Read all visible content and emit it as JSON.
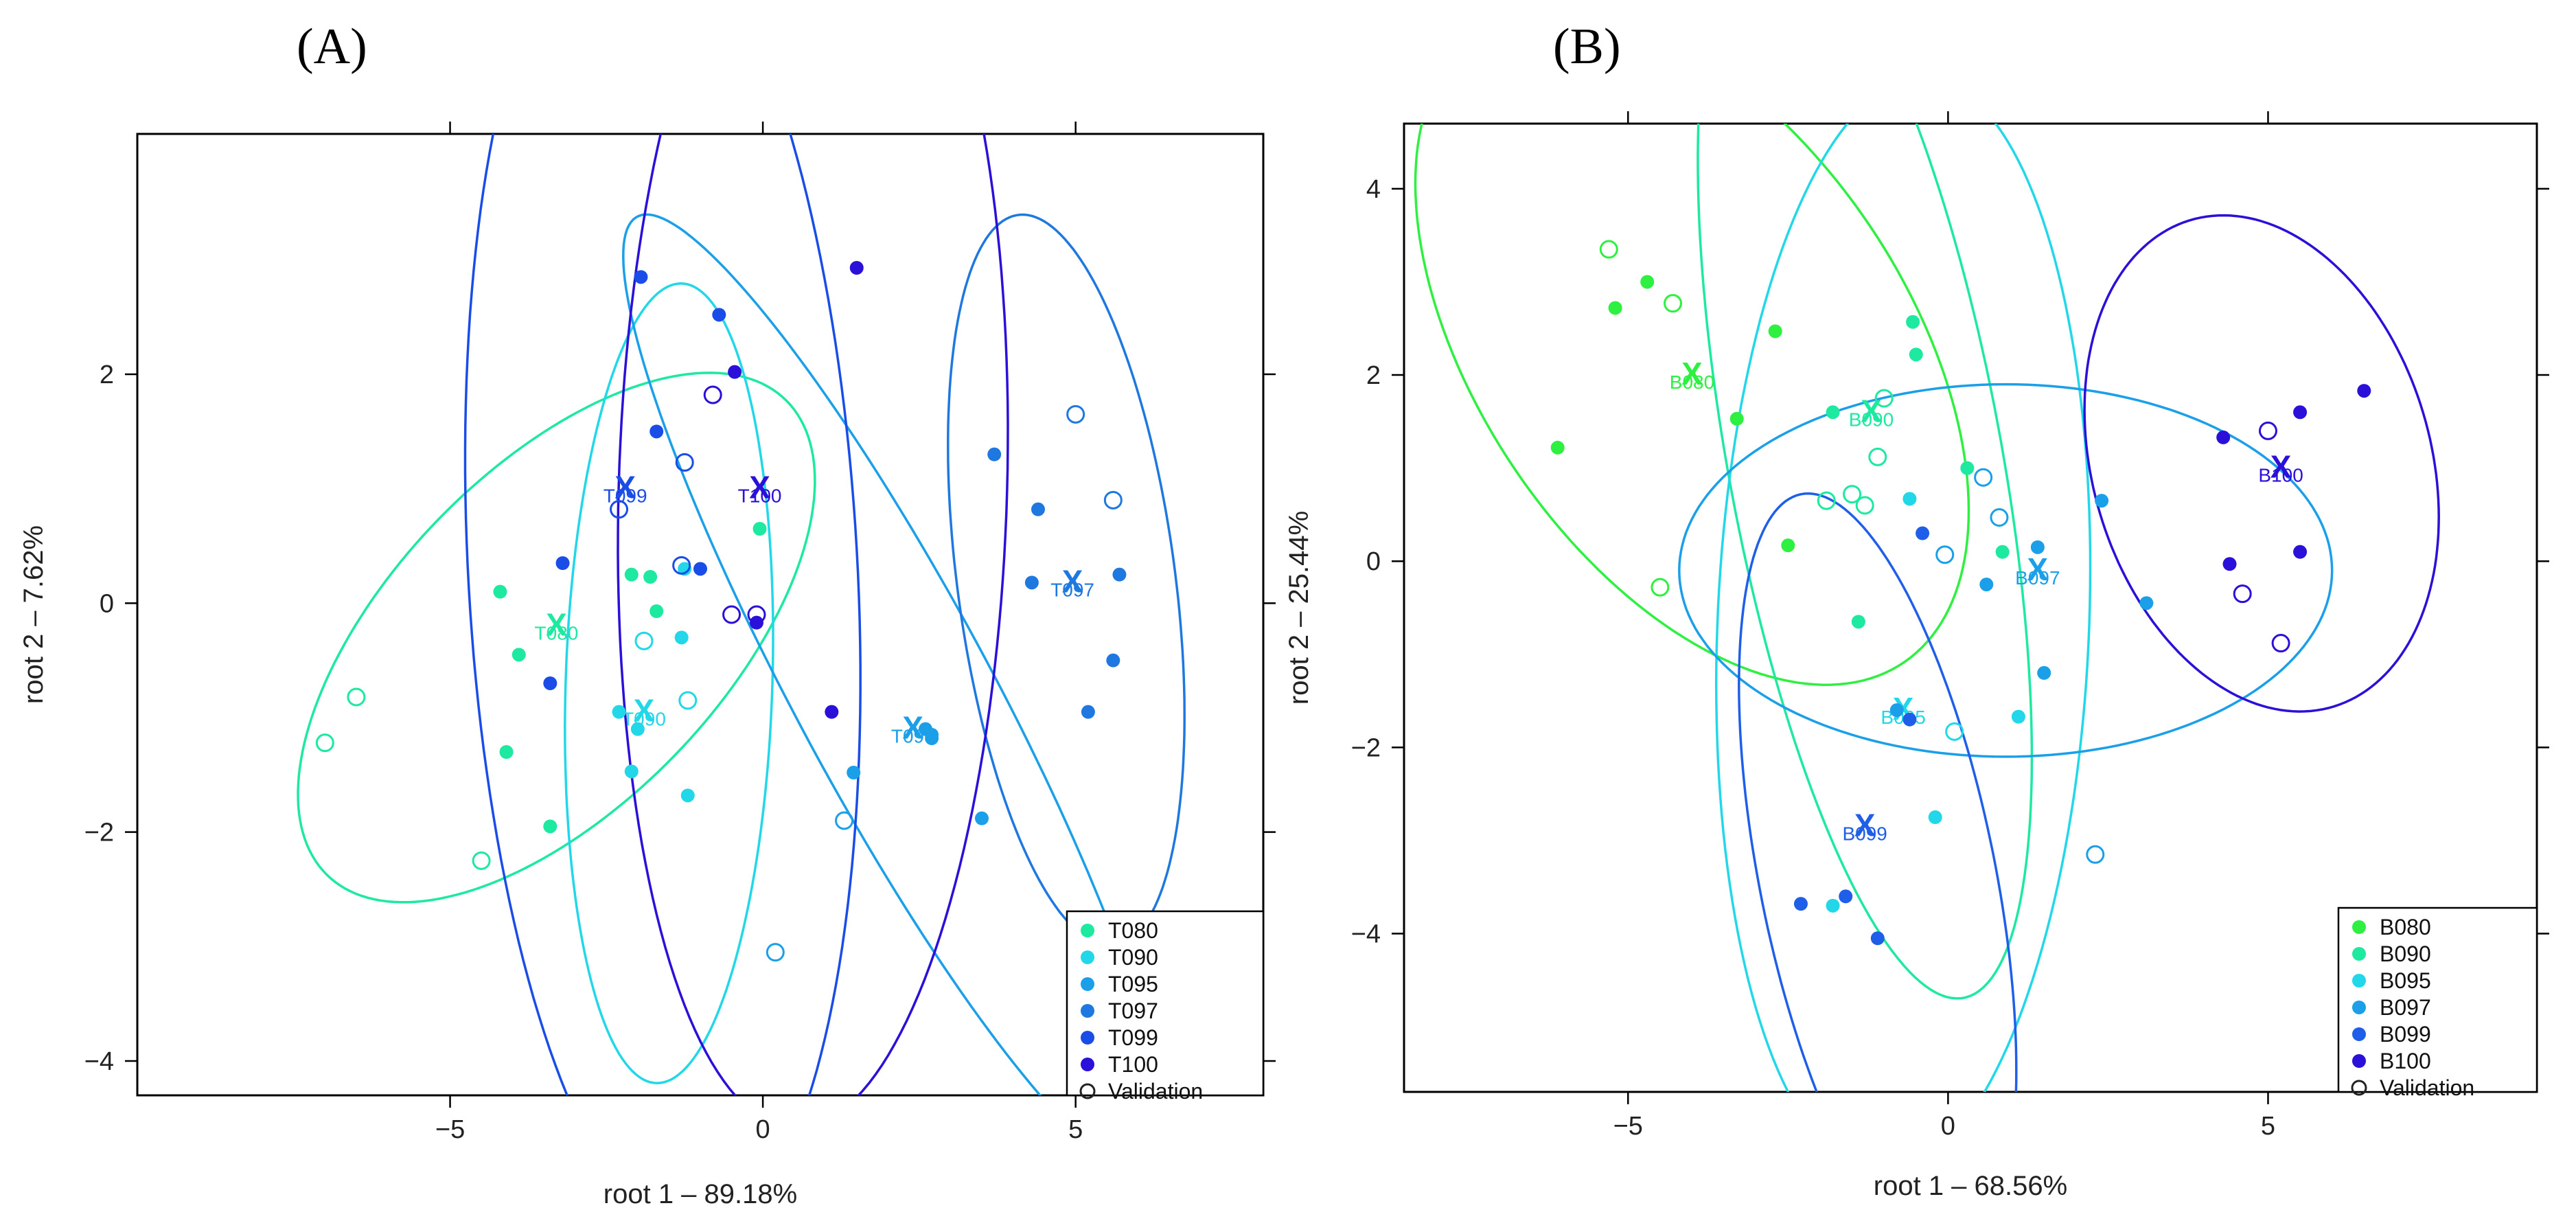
{
  "chart_data": [
    {
      "type": "scatter",
      "panel_label": "(A)",
      "xlabel": "root 1 – 89.18%",
      "ylabel": "root 2 – 7.62%",
      "xlim": [
        -10,
        8
      ],
      "ylim": [
        -4.3,
        4.1
      ],
      "xticks": [
        -5,
        0,
        5
      ],
      "yticks": [
        -4,
        -2,
        0,
        2
      ],
      "grid": false,
      "legend_position": "bottom-right",
      "series": [
        {
          "name": "T080",
          "color": "#1de9a0",
          "points": [
            [
              -4.2,
              0.1
            ],
            [
              -3.9,
              -0.45
            ],
            [
              -4.1,
              -1.3
            ],
            [
              -3.4,
              -1.95
            ],
            [
              -1.7,
              -0.07
            ],
            [
              -2.1,
              0.25
            ],
            [
              -1.8,
              0.23
            ],
            [
              -0.05,
              0.65
            ]
          ],
          "centroid": [
            -3.3,
            -0.2
          ],
          "ellipse": {
            "cx": -3.3,
            "cy": -0.3,
            "rx": 4.4,
            "ry": 1.75,
            "angle": 22
          }
        },
        {
          "name": "T090",
          "color": "#22d8e8",
          "points": [
            [
              -2.1,
              -1.47
            ],
            [
              -1.3,
              -0.3
            ],
            [
              -1.2,
              -1.68
            ],
            [
              -2.0,
              -1.1
            ],
            [
              -1.25,
              0.3
            ],
            [
              -2.3,
              -0.95
            ]
          ],
          "centroid": [
            -1.9,
            -0.95
          ],
          "ellipse": {
            "cx": -1.5,
            "cy": -0.7,
            "rx": 3.5,
            "ry": 1.65,
            "angle": 86
          }
        },
        {
          "name": "T095",
          "color": "#1a9fe8",
          "points": [
            [
              1.45,
              -1.48
            ],
            [
              2.6,
              -1.1
            ],
            [
              2.7,
              -1.15
            ],
            [
              3.5,
              -1.88
            ],
            [
              2.7,
              -1.18
            ]
          ],
          "centroid": [
            2.4,
            -1.1
          ],
          "ellipse": {
            "cx": 2.1,
            "cy": -0.8,
            "rx": 5.9,
            "ry": 1.25,
            "angle": -44
          }
        },
        {
          "name": "T097",
          "color": "#1f78e0",
          "points": [
            [
              3.7,
              1.3
            ],
            [
              4.4,
              0.82
            ],
            [
              4.3,
              0.18
            ],
            [
              5.7,
              0.25
            ],
            [
              5.6,
              -0.5
            ],
            [
              5.2,
              -0.95
            ]
          ],
          "centroid": [
            4.95,
            0.18
          ],
          "ellipse": {
            "cx": 4.85,
            "cy": 0.2,
            "rx": 3.3,
            "ry": 1.7,
            "angle": -73
          }
        },
        {
          "name": "T099",
          "color": "#1a4de8",
          "points": [
            [
              -1.95,
              2.85
            ],
            [
              -0.7,
              2.52
            ],
            [
              -1.7,
              1.5
            ],
            [
              -3.2,
              0.35
            ],
            [
              -1.0,
              0.3
            ],
            [
              -3.4,
              -0.7
            ]
          ],
          "centroid": [
            -2.2,
            1.0
          ],
          "ellipse": {
            "cx": -1.6,
            "cy": 0.3,
            "rx": 5.9,
            "ry": 3.1,
            "angle": 97
          }
        },
        {
          "name": "T100",
          "color": "#2a10d8",
          "points": [
            [
              1.5,
              2.93
            ],
            [
              -0.45,
              2.02
            ],
            [
              -0.1,
              -0.17
            ],
            [
              1.1,
              -0.95
            ]
          ],
          "centroid": [
            -0.05,
            1.0
          ],
          "ellipse": {
            "cx": 0.8,
            "cy": 1.0,
            "rx": 5.6,
            "ry": 3.1,
            "angle": 86
          }
        }
      ],
      "validation": {
        "name": "Validation",
        "points": [
          [
            -0.8,
            1.82
          ],
          [
            -1.25,
            1.23
          ],
          [
            -2.3,
            0.82
          ],
          [
            -1.3,
            0.33
          ],
          [
            -0.5,
            -0.1
          ],
          [
            -1.9,
            -0.33
          ],
          [
            -0.1,
            -0.1
          ],
          [
            -1.2,
            -0.85
          ],
          [
            -6.5,
            -0.82
          ],
          [
            -7.0,
            -1.22
          ],
          [
            -4.5,
            -2.25
          ],
          [
            1.3,
            -1.9
          ],
          [
            0.2,
            -3.05
          ],
          [
            5.0,
            1.65
          ],
          [
            5.6,
            0.9
          ]
        ]
      },
      "centroid_labels": [
        "T099",
        "T100",
        "T080",
        "T090",
        "T095",
        "T097"
      ]
    },
    {
      "type": "scatter",
      "panel_label": "(B)",
      "xlabel": "root 1 – 68.56%",
      "ylabel": "root 2 – 25.44%",
      "xlim": [
        -8.5,
        9.2
      ],
      "ylim": [
        -5.7,
        4.7
      ],
      "xticks": [
        -5,
        0,
        5
      ],
      "yticks": [
        -4,
        -2,
        0,
        2,
        4
      ],
      "grid": false,
      "legend_position": "bottom-right",
      "series": [
        {
          "name": "B080",
          "color": "#2ef040",
          "points": [
            [
              -4.7,
              3.0
            ],
            [
              -5.2,
              2.72
            ],
            [
              -2.7,
              2.47
            ],
            [
              -3.3,
              1.53
            ],
            [
              -6.1,
              1.22
            ],
            [
              -2.5,
              0.17
            ]
          ],
          "centroid": [
            -4.0,
            2.0
          ],
          "ellipse": {
            "cx": -4.0,
            "cy": 2.3,
            "rx": 4.9,
            "ry": 2.8,
            "angle": -35
          }
        },
        {
          "name": "B090",
          "color": "#1de9a0",
          "points": [
            [
              -0.55,
              2.57
            ],
            [
              -0.5,
              2.22
            ],
            [
              -1.8,
              1.6
            ],
            [
              0.3,
              1.0
            ],
            [
              0.85,
              0.1
            ],
            [
              -1.4,
              -0.65
            ]
          ],
          "centroid": [
            -1.2,
            1.6
          ],
          "ellipse": {
            "cx": -1.3,
            "cy": 1.1,
            "rx": 6.0,
            "ry": 2.1,
            "angle": -74
          }
        },
        {
          "name": "B095",
          "color": "#22d8e8",
          "points": [
            [
              -0.6,
              0.67
            ],
            [
              1.1,
              -1.67
            ],
            [
              -1.8,
              -3.7
            ],
            [
              -0.2,
              -2.75
            ]
          ],
          "centroid": [
            -0.7,
            -1.6
          ],
          "ellipse": {
            "cx": -0.7,
            "cy": -0.7,
            "rx": 5.9,
            "ry": 2.9,
            "angle": 86
          }
        },
        {
          "name": "B097",
          "color": "#1a9fe8",
          "points": [
            [
              1.4,
              0.15
            ],
            [
              0.6,
              -0.25
            ],
            [
              3.1,
              -0.45
            ],
            [
              2.4,
              0.65
            ],
            [
              1.5,
              -1.2
            ],
            [
              -0.8,
              -1.6
            ]
          ],
          "centroid": [
            1.4,
            -0.1
          ],
          "ellipse": {
            "cx": 0.9,
            "cy": -0.1,
            "rx": 5.1,
            "ry": 2.0,
            "angle": 0
          }
        },
        {
          "name": "B099",
          "color": "#1f5ee8",
          "points": [
            [
              -0.4,
              0.3
            ],
            [
              -0.6,
              -1.7
            ],
            [
              -2.3,
              -3.68
            ],
            [
              -1.6,
              -3.6
            ],
            [
              -1.1,
              -4.05
            ]
          ],
          "centroid": [
            -1.3,
            -2.85
          ],
          "ellipse": {
            "cx": -1.1,
            "cy": -3.4,
            "rx": 4.3,
            "ry": 1.8,
            "angle": -72
          }
        },
        {
          "name": "B100",
          "color": "#2a10d8",
          "points": [
            [
              6.5,
              1.83
            ],
            [
              4.3,
              1.33
            ],
            [
              5.5,
              1.6
            ],
            [
              5.5,
              0.1
            ],
            [
              4.4,
              -0.03
            ]
          ],
          "centroid": [
            5.2,
            1.0
          ],
          "ellipse": {
            "cx": 4.9,
            "cy": 1.05,
            "rx": 3.0,
            "ry": 2.4,
            "angle": -40
          }
        }
      ],
      "validation": {
        "name": "Validation",
        "points": [
          [
            -5.3,
            3.35
          ],
          [
            -4.3,
            2.77
          ],
          [
            -1.0,
            1.75
          ],
          [
            -1.1,
            1.12
          ],
          [
            -1.9,
            0.65
          ],
          [
            -1.5,
            0.72
          ],
          [
            -1.3,
            0.6
          ],
          [
            0.55,
            0.9
          ],
          [
            0.8,
            0.47
          ],
          [
            -0.05,
            0.07
          ],
          [
            -4.5,
            -0.28
          ],
          [
            0.1,
            -1.83
          ],
          [
            2.3,
            -3.15
          ],
          [
            5.0,
            1.4
          ],
          [
            4.6,
            -0.35
          ],
          [
            5.2,
            -0.88
          ]
        ]
      },
      "centroid_labels": [
        "B080",
        "B090",
        "B100",
        "B097",
        "B095",
        "B099"
      ]
    }
  ],
  "legend_validation_label": "Validation"
}
